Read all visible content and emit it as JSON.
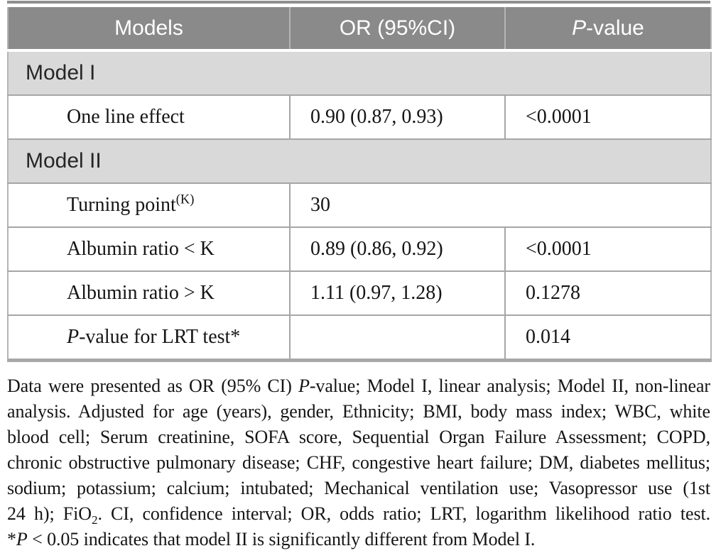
{
  "colors": {
    "header_bg": "#8a8a8a",
    "header_text": "#ffffff",
    "section_bg": "#d9d9d9",
    "border": "#a6a6a6",
    "body_text": "#151515"
  },
  "table": {
    "header": {
      "models": "Models",
      "or_ci": "OR (95%CI)",
      "p_value": [
        {
          "t": "P",
          "i": true
        },
        {
          "t": "-value"
        }
      ]
    },
    "section1": {
      "label": "Model I"
    },
    "row_one_line": {
      "label": "One line effect",
      "or_ci": "0.90 (0.87, 0.93)",
      "p_value": "<0.0001"
    },
    "section2": {
      "label": "Model II"
    },
    "row_turning_point": {
      "label": [
        {
          "t": "Turning point"
        },
        {
          "t": "(K)",
          "sup": true
        }
      ],
      "value": "30"
    },
    "row_albumin_lt": {
      "label": "Albumin ratio < K",
      "or_ci": "0.89 (0.86, 0.92)",
      "p_value": "<0.0001"
    },
    "row_albumin_gt": {
      "label": "Albumin ratio > K",
      "or_ci": "1.11 (0.97, 1.28)",
      "p_value": "0.1278"
    },
    "row_lrt": {
      "label": [
        {
          "t": "P",
          "i": true
        },
        {
          "t": "-value for LRT test*"
        }
      ],
      "or_ci": "",
      "p_value": "0.014"
    }
  },
  "footnote": {
    "lines": [
      [
        {
          "t": "Data were presented as OR (95% CI) "
        },
        {
          "t": "P",
          "i": true
        },
        {
          "t": "-value; Model I, linear analysis; Model II, non-linear"
        }
      ],
      [
        {
          "t": "analysis. Adjusted for age (years), gender, Ethnicity; BMI, body mass index; WBC, white"
        }
      ],
      [
        {
          "t": "blood cell; Serum creatinine, SOFA score, Sequential Organ Failure Assessment; COPD,"
        }
      ],
      [
        {
          "t": "chronic obstructive pulmonary disease; CHF, congestive heart failure; DM, diabetes mellitus;"
        }
      ],
      [
        {
          "t": "sodium; potassium; calcium; intubated; Mechanical ventilation use; Vasopressor use (1st"
        }
      ],
      [
        {
          "t": "24 h); FiO"
        },
        {
          "t": "2",
          "sub": true
        },
        {
          "t": ". CI, confidence interval; OR, odds ratio; LRT, logarithm likelihood ratio test."
        }
      ],
      [
        {
          "t": "*"
        },
        {
          "t": "P",
          "i": true
        },
        {
          "t": " < 0.05 indicates that model II is significantly different from Model I."
        }
      ]
    ]
  }
}
